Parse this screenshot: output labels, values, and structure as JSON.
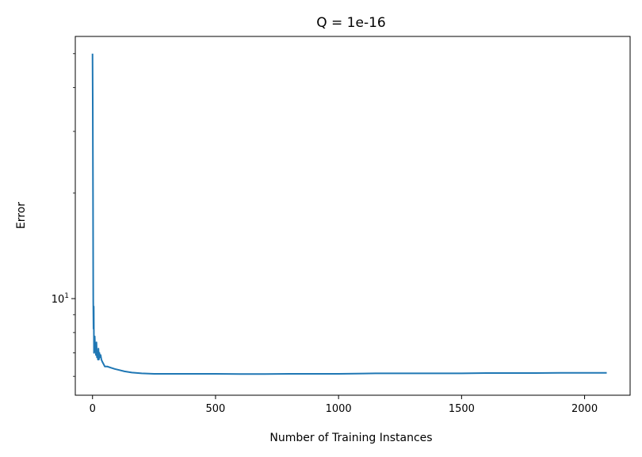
{
  "chart_data": {
    "type": "line",
    "title": "Q = 1e-16",
    "xlabel": "Number of Training Instances",
    "ylabel": "Error",
    "yscale": "log",
    "xlim": [
      -70,
      2185
    ],
    "ylim": [
      5.3,
      56
    ],
    "x_ticks": [
      0,
      500,
      1000,
      1500,
      2000
    ],
    "y_major_ticks": [
      {
        "value": 10,
        "base": "10",
        "exponent": "1"
      }
    ],
    "y_minor_ticks": [
      6,
      7,
      8,
      9,
      20,
      30,
      40,
      50
    ],
    "grid": false,
    "series": [
      {
        "color": "#1f77b4",
        "x": [
          0,
          1,
          2,
          3,
          4,
          5,
          6,
          7,
          8,
          9,
          10,
          12,
          14,
          16,
          18,
          20,
          22,
          24,
          26,
          28,
          30,
          33,
          36,
          40,
          45,
          50,
          60,
          75,
          90,
          110,
          130,
          160,
          200,
          250,
          300,
          350,
          400,
          500,
          600,
          650,
          700,
          800,
          900,
          1000,
          1100,
          1150,
          1200,
          1300,
          1400,
          1500,
          1600,
          1700,
          1800,
          1900,
          2000,
          2090
        ],
        "y": [
          50,
          35,
          20,
          9.8,
          8.2,
          9.5,
          7.0,
          7.6,
          7.1,
          7.8,
          7.4,
          7.1,
          6.9,
          7.5,
          6.8,
          7.0,
          6.7,
          7.2,
          6.7,
          7.0,
          6.8,
          6.9,
          6.7,
          6.6,
          6.5,
          6.4,
          6.4,
          6.35,
          6.3,
          6.25,
          6.2,
          6.15,
          6.12,
          6.1,
          6.1,
          6.1,
          6.1,
          6.1,
          6.09,
          6.09,
          6.09,
          6.1,
          6.1,
          6.1,
          6.11,
          6.12,
          6.12,
          6.12,
          6.12,
          6.12,
          6.13,
          6.13,
          6.13,
          6.14,
          6.14,
          6.14
        ]
      }
    ]
  }
}
